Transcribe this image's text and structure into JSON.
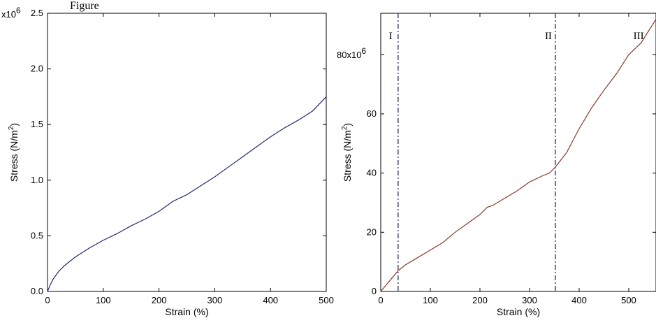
{
  "fig_label": "Figure",
  "chart_data": [
    {
      "type": "line",
      "title": "",
      "xlabel": "Strain (%)",
      "ylabel": "Stress (N/m²)",
      "ylabel_main": "Stress (N/m",
      "ylabel_sup": "2",
      "ylabel_close": ")",
      "xlim": [
        0,
        500
      ],
      "ylim": [
        0,
        2.5
      ],
      "y_multiplier": "x10",
      "y_exponent": "6",
      "x_ticks": [
        0,
        100,
        200,
        300,
        400,
        500
      ],
      "x_tick_labels": [
        "0",
        "100",
        "200",
        "300",
        "400",
        "500"
      ],
      "y_ticks": [
        0,
        0.5,
        1.0,
        1.5,
        2.0,
        2.5
      ],
      "y_tick_labels": [
        "0.0",
        "0.5",
        "1.0",
        "1.5",
        "2.0",
        "2.5"
      ],
      "grid": false,
      "series": [
        {
          "color": "#1f2a6e",
          "x": [
            0,
            5,
            10,
            20,
            30,
            50,
            75,
            100,
            125,
            150,
            175,
            200,
            225,
            250,
            275,
            300,
            325,
            350,
            375,
            400,
            425,
            450,
            475,
            500
          ],
          "y": [
            0,
            0.06,
            0.11,
            0.18,
            0.23,
            0.31,
            0.39,
            0.46,
            0.52,
            0.59,
            0.65,
            0.72,
            0.81,
            0.87,
            0.95,
            1.03,
            1.12,
            1.21,
            1.3,
            1.39,
            1.47,
            1.54,
            1.62,
            1.75
          ]
        }
      ]
    },
    {
      "type": "line",
      "title": "",
      "xlabel": "Strain (%)",
      "ylabel": "Stress (N/m²)",
      "ylabel_main": "Stress (N/m",
      "ylabel_sup": "2",
      "ylabel_close": ")",
      "xlim": [
        0,
        555
      ],
      "ylim": [
        0,
        94
      ],
      "y_multiplier": "80x10",
      "y_exponent": "6",
      "x_ticks": [
        0,
        100,
        200,
        300,
        400,
        500
      ],
      "x_tick_labels": [
        "0",
        "100",
        "200",
        "300",
        "400",
        "500"
      ],
      "y_ticks": [
        0,
        20,
        40,
        60,
        80
      ],
      "y_tick_labels": [
        "0",
        "20",
        "40",
        "60",
        ""
      ],
      "grid": false,
      "vlines": [
        35,
        352
      ],
      "regions": [
        {
          "label": "I",
          "x": 20
        },
        {
          "label": "II",
          "x": 338
        },
        {
          "label": "III",
          "x": 520
        }
      ],
      "series": [
        {
          "color": "#8b3a2a",
          "x": [
            0,
            10,
            20,
            35,
            50,
            75,
            100,
            125,
            150,
            175,
            200,
            215,
            225,
            250,
            275,
            300,
            325,
            340,
            352,
            375,
            400,
            425,
            450,
            475,
            500,
            525,
            555
          ],
          "y": [
            0,
            2,
            4,
            7,
            9,
            11.5,
            14,
            16.5,
            20,
            23,
            26,
            28.5,
            29,
            31.5,
            34,
            37,
            39,
            40,
            42,
            47,
            55,
            62,
            68,
            73.5,
            80,
            84,
            92
          ]
        }
      ]
    }
  ]
}
